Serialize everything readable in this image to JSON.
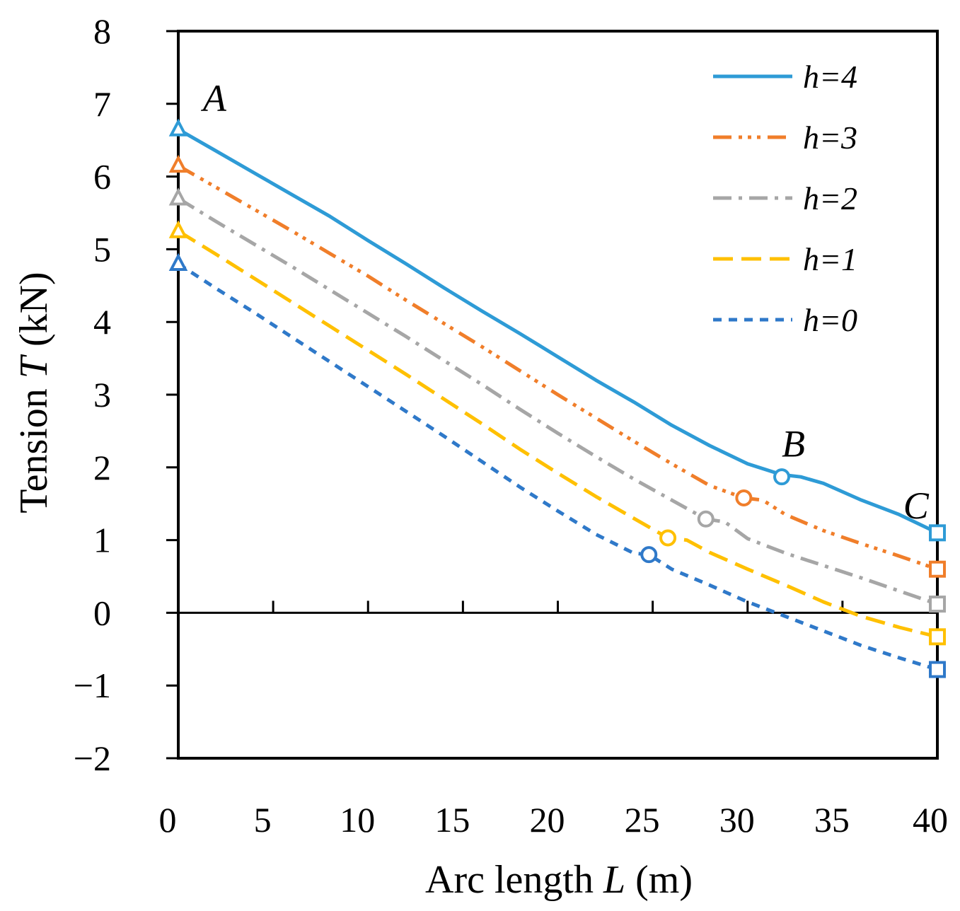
{
  "chart_data": {
    "type": "line",
    "xlabel": {
      "prefix": "Arc length ",
      "var": "L",
      "unit": " (m)"
    },
    "ylabel": {
      "prefix": "Tension ",
      "var": "T",
      "unit": " (kN)"
    },
    "xlim": [
      0,
      40
    ],
    "ylim": [
      -2,
      8
    ],
    "xticks": [
      0,
      5,
      10,
      15,
      20,
      25,
      30,
      35,
      40
    ],
    "yticks": [
      -2,
      -1,
      0,
      1,
      2,
      3,
      4,
      5,
      6,
      7,
      8
    ],
    "ytick_labels": [
      "−2",
      "−1",
      "0",
      "1",
      "2",
      "3",
      "4",
      "5",
      "6",
      "7",
      "8"
    ],
    "legend_position": "top-right",
    "point_labels": [
      {
        "text": "A",
        "x": 1.3,
        "y": 6.9
      },
      {
        "text": "B",
        "x": 31.8,
        "y": 2.15
      },
      {
        "text": "C",
        "x": 38.2,
        "y": 1.3
      }
    ],
    "series": [
      {
        "name": "h=4",
        "color": "#2E9BD6",
        "dash": "",
        "x": [
          0,
          2,
          4,
          6,
          8,
          10,
          12,
          14,
          16,
          18,
          20,
          22,
          24,
          26,
          28,
          30,
          31.8,
          32.8,
          34,
          36,
          38,
          40
        ],
        "y": [
          6.65,
          6.35,
          6.05,
          5.75,
          5.45,
          5.12,
          4.8,
          4.47,
          4.15,
          3.84,
          3.52,
          3.2,
          2.9,
          2.58,
          2.3,
          2.05,
          1.9,
          1.87,
          1.78,
          1.55,
          1.35,
          1.1
        ],
        "markers": [
          {
            "x": 0,
            "y": 6.65,
            "shape": "triangle"
          },
          {
            "x": 31.8,
            "y": 1.87,
            "shape": "circle"
          },
          {
            "x": 40,
            "y": 1.1,
            "shape": "square"
          }
        ]
      },
      {
        "name": "h=3",
        "color": "#F07E2A",
        "dash": "26 10 5 8 5 8 5 10",
        "x": [
          0,
          2,
          4,
          6,
          8,
          10,
          12,
          14,
          16,
          18,
          20,
          22,
          24,
          26,
          28,
          29.8,
          30.8,
          32,
          34,
          36,
          38,
          40
        ],
        "y": [
          6.15,
          5.85,
          5.55,
          5.25,
          4.94,
          4.63,
          4.3,
          3.98,
          3.66,
          3.33,
          3.0,
          2.68,
          2.36,
          2.05,
          1.75,
          1.58,
          1.55,
          1.35,
          1.13,
          0.95,
          0.78,
          0.6
        ],
        "markers": [
          {
            "x": 0,
            "y": 6.15,
            "shape": "triangle"
          },
          {
            "x": 29.8,
            "y": 1.58,
            "shape": "circle"
          },
          {
            "x": 40,
            "y": 0.6,
            "shape": "square"
          }
        ]
      },
      {
        "name": "h=2",
        "color": "#A6A6A6",
        "dash": "26 10 5 10",
        "x": [
          0,
          2,
          4,
          6,
          8,
          10,
          12,
          14,
          16,
          18,
          20,
          22,
          24,
          26,
          27.8,
          28.8,
          30,
          32,
          34,
          36,
          38,
          40
        ],
        "y": [
          5.7,
          5.38,
          5.07,
          4.76,
          4.44,
          4.12,
          3.8,
          3.47,
          3.14,
          2.8,
          2.47,
          2.15,
          1.84,
          1.55,
          1.29,
          1.25,
          1.02,
          0.82,
          0.65,
          0.48,
          0.3,
          0.12
        ],
        "markers": [
          {
            "x": 0,
            "y": 5.7,
            "shape": "triangle"
          },
          {
            "x": 27.8,
            "y": 1.29,
            "shape": "circle"
          },
          {
            "x": 40,
            "y": 0.12,
            "shape": "square"
          }
        ]
      },
      {
        "name": "h=1",
        "color": "#FFC000",
        "dash": "28 12",
        "x": [
          0,
          2,
          4,
          6,
          8,
          10,
          12,
          14,
          16,
          18,
          20,
          22,
          24,
          25.8,
          26.8,
          28,
          30,
          32,
          34,
          36,
          38,
          40
        ],
        "y": [
          5.25,
          4.93,
          4.6,
          4.27,
          3.94,
          3.61,
          3.28,
          2.94,
          2.6,
          2.25,
          1.92,
          1.6,
          1.3,
          1.03,
          1.0,
          0.83,
          0.6,
          0.38,
          0.15,
          -0.05,
          -0.2,
          -0.33
        ],
        "markers": [
          {
            "x": 0,
            "y": 5.25,
            "shape": "triangle"
          },
          {
            "x": 25.8,
            "y": 1.03,
            "shape": "circle"
          },
          {
            "x": 40,
            "y": -0.33,
            "shape": "square"
          }
        ]
      },
      {
        "name": "h=0",
        "color": "#2F79C9",
        "dash": "12 10",
        "x": [
          0,
          2,
          4,
          6,
          8,
          10,
          12,
          14,
          16,
          18,
          20,
          22,
          24,
          24.8,
          26,
          28,
          30,
          32,
          34,
          36,
          38,
          40
        ],
        "y": [
          4.8,
          4.46,
          4.13,
          3.79,
          3.45,
          3.11,
          2.77,
          2.43,
          2.08,
          1.73,
          1.4,
          1.08,
          0.82,
          0.8,
          0.6,
          0.38,
          0.15,
          -0.05,
          -0.25,
          -0.45,
          -0.62,
          -0.78
        ],
        "markers": [
          {
            "x": 0,
            "y": 4.8,
            "shape": "triangle"
          },
          {
            "x": 24.8,
            "y": 0.8,
            "shape": "circle"
          },
          {
            "x": 40,
            "y": -0.78,
            "shape": "square"
          }
        ]
      }
    ]
  }
}
